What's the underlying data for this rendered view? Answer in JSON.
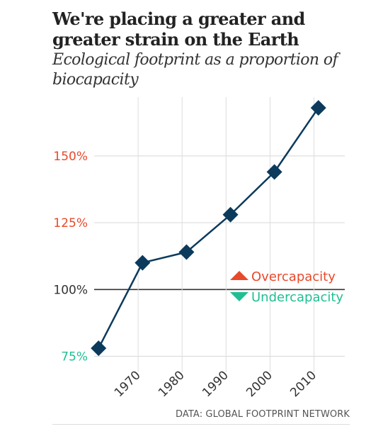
{
  "title": "We're placing a greater and greater strain on the Earth",
  "subtitle": "Ecological footprint as a proportion of biocapacity",
  "source": "DATA: GLOBAL FOOTPRINT NETWORK",
  "colors": {
    "line": "#0b3a5c",
    "marker": "#0b3a5c",
    "over": "#e8492b",
    "under": "#1fbf93",
    "baseline": "#333333",
    "grid": "#dddddd",
    "neutral_tick": "#333333"
  },
  "chart_data": {
    "type": "line",
    "title": "We're placing a greater and greater strain on the Earth",
    "subtitle": "Ecological footprint as a proportion of biocapacity",
    "xlabel": "",
    "ylabel": "",
    "x": [
      1961,
      1971,
      1981,
      1991,
      2001,
      2011
    ],
    "y": [
      78,
      110,
      114,
      128,
      144,
      168
    ],
    "xlim": [
      1960,
      2017
    ],
    "ylim": [
      73,
      172
    ],
    "x_ticks": [
      1970,
      1980,
      1990,
      2000,
      2010
    ],
    "x_tick_labels": [
      "1970",
      "1980",
      "1990",
      "2000",
      "2010"
    ],
    "y_ticks": [
      75,
      100,
      125,
      150
    ],
    "y_tick_labels": [
      "75%",
      "100%",
      "125%",
      "150%"
    ],
    "baseline": 100,
    "grid": true,
    "legend": {
      "position": "right",
      "items": [
        {
          "label": "Overcapacity",
          "symbol": "triangle-up",
          "color": "#e8492b"
        },
        {
          "label": "Undercapacity",
          "symbol": "triangle-down",
          "color": "#1fbf93"
        }
      ]
    },
    "marker": "diamond"
  }
}
